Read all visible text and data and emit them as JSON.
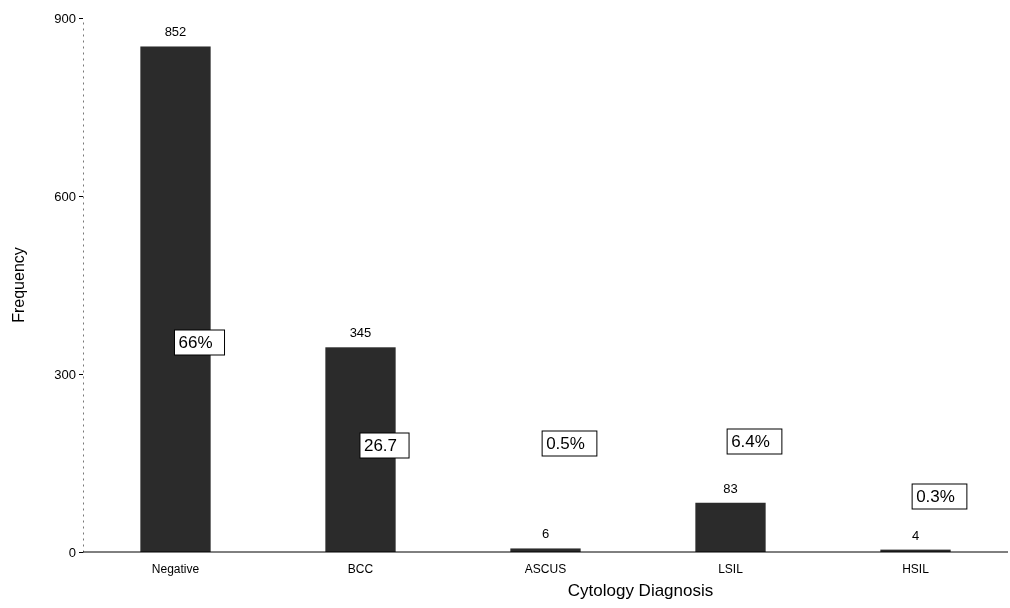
{
  "chart_data": {
    "type": "bar",
    "xlabel": "Cytology Diagnosis",
    "ylabel": "Frequency",
    "categories": [
      "Negative",
      "BCC",
      "ASCUS",
      "LSIL",
      "HSIL"
    ],
    "values": [
      852,
      345,
      6,
      83,
      4
    ],
    "color": "#2b2b2b",
    "ylim": [
      0,
      900
    ],
    "yticks": [
      0,
      300,
      600,
      900
    ],
    "grid": false,
    "data_labels": true,
    "annotations": [
      "66%",
      "26.7",
      "0.5%",
      "6.4%",
      "0.3%"
    ]
  }
}
